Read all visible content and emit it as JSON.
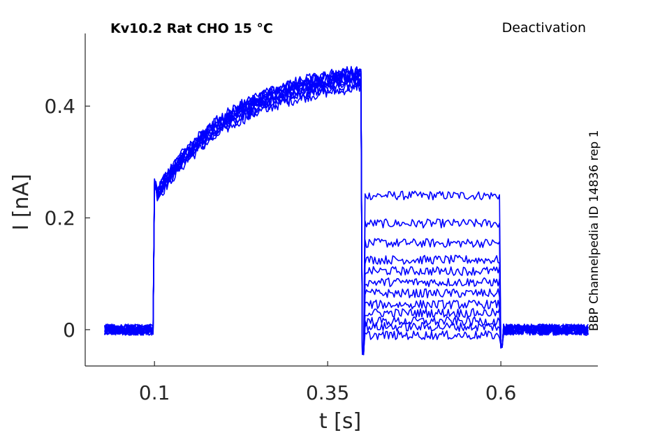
{
  "chart_data": {
    "type": "line",
    "title": "Kv10.2  Rat  CHO  15 °C",
    "protocol_label": "Deactivation",
    "side_label": "BBP Channelpedia ID 14836 rep 1",
    "xlabel": "t [s]",
    "ylabel": "I [nA]",
    "xlim": [
      -0.0,
      0.74
    ],
    "ylim": [
      -0.065,
      0.53
    ],
    "xticks": [
      0.1,
      0.35,
      0.6
    ],
    "xtick_labels": [
      "0.1",
      "0.35",
      "0.6"
    ],
    "yticks": [
      0,
      0.2,
      0.4
    ],
    "ytick_labels": [
      "0",
      "0.2",
      "0.4"
    ],
    "grid": false,
    "series_color": "#0000ff",
    "protocol_times_s": {
      "start": 0.028,
      "prepulse_on": 0.1,
      "test_on": 0.4,
      "test_off": 0.6,
      "end": 0.727
    },
    "baseline_nA": 0.0,
    "prepulse_peak_nA": 0.26,
    "prepulse_end_nA": 0.45,
    "tail_levels_nA": [
      0.24,
      0.19,
      0.155,
      0.125,
      0.105,
      0.085,
      0.065,
      0.045,
      0.03,
      0.015,
      0.005,
      -0.01
    ]
  }
}
